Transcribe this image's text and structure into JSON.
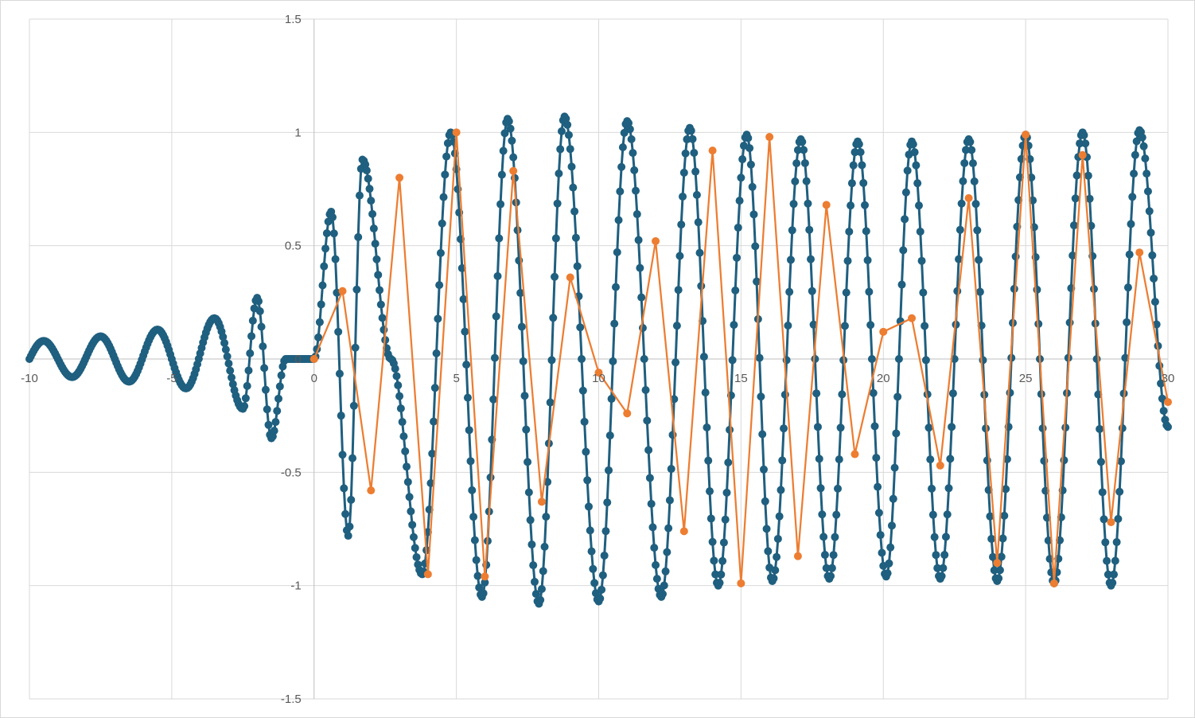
{
  "chart_data": {
    "type": "scatter",
    "title": "",
    "xlabel": "",
    "ylabel": "",
    "xlim": [
      -10,
      30
    ],
    "ylim": [
      -1.5,
      1.5
    ],
    "x_ticks": [
      -10,
      -5,
      0,
      5,
      10,
      15,
      20,
      25,
      30
    ],
    "x_tick_labels": [
      "-10",
      "-5",
      "0",
      "5",
      "10",
      "15",
      "20",
      "25",
      "30"
    ],
    "y_ticks": [
      -1.5,
      -1,
      -0.5,
      0,
      0.5,
      1,
      1.5
    ],
    "y_tick_labels": [
      "-1.5",
      "-1",
      "-0.5",
      "0",
      "0.5",
      "1",
      "1.5"
    ],
    "grid": true,
    "legend": "none",
    "colors": {
      "dense_series": "#1f5f7f",
      "sampled_series": "#ed7d31",
      "grid": "#d9d9d9",
      "axis_line": "#bfbfbf",
      "tick_text": "#595959"
    },
    "series": [
      {
        "style": "line-with-dense-markers",
        "color": "#1f5f7f",
        "x_start": -10,
        "x_end": 30,
        "x_step": 0.05,
        "points_x": [
          -9.5,
          -8.5,
          -7.5,
          -6.5,
          -5.5,
          -4.5,
          -3.5,
          -2.5,
          -2.0,
          -1.5,
          -1.0,
          -0.5,
          0.0,
          0.6,
          1.2,
          1.7,
          2.7,
          3.8,
          4.8,
          5.9,
          6.8,
          7.9,
          8.8,
          10.0,
          11.0,
          12.2,
          13.2,
          14.2,
          15.2,
          16.1,
          17.1,
          18.1,
          19.1,
          20.1,
          21.0,
          22.0,
          23.0,
          24.0,
          25.0,
          26.0,
          27.0,
          28.0,
          29.0,
          30.0
        ],
        "points_y": [
          0.08,
          -0.08,
          0.1,
          -0.1,
          0.13,
          -0.13,
          0.18,
          -0.22,
          0.27,
          -0.35,
          0.0,
          0.0,
          0.0,
          0.65,
          -0.78,
          0.88,
          0.0,
          -0.95,
          1.0,
          -1.05,
          1.06,
          -1.08,
          1.07,
          -1.07,
          1.05,
          -1.05,
          1.02,
          -1.0,
          0.99,
          -0.98,
          0.97,
          -0.97,
          0.96,
          -0.96,
          0.96,
          -0.97,
          0.97,
          -0.98,
          0.99,
          -0.99,
          1.0,
          -1.0,
          1.01,
          -0.3
        ]
      },
      {
        "style": "line-with-markers",
        "color": "#ed7d31",
        "x": [
          0,
          1,
          2,
          3,
          4,
          5,
          6,
          7,
          8,
          9,
          10,
          11,
          12,
          13,
          14,
          15,
          16,
          17,
          18,
          19,
          20,
          21,
          22,
          23,
          24,
          25,
          26,
          27,
          28,
          29,
          30
        ],
        "y": [
          0.0,
          0.3,
          -0.58,
          0.8,
          -0.95,
          1.0,
          -0.96,
          0.83,
          -0.63,
          0.36,
          -0.06,
          -0.24,
          0.52,
          -0.76,
          0.92,
          -0.99,
          0.98,
          -0.87,
          0.68,
          -0.42,
          0.12,
          0.18,
          -0.47,
          0.71,
          -0.9,
          0.99,
          -0.99,
          0.9,
          -0.72,
          0.47,
          -0.19
        ]
      }
    ]
  }
}
